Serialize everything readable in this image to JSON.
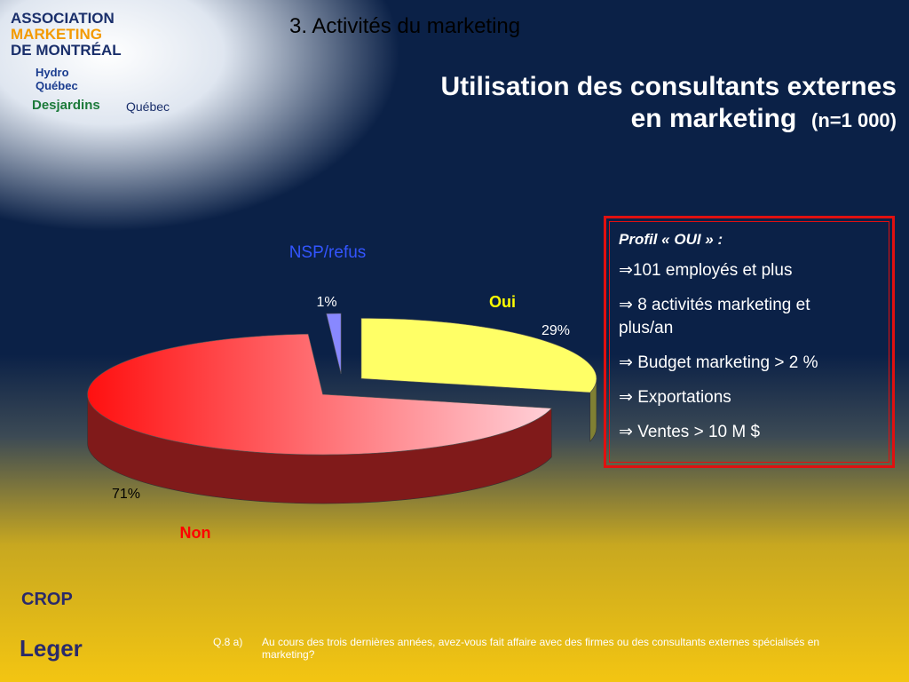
{
  "chart_data": {
    "type": "pie",
    "categories": [
      "Oui",
      "Non",
      "NSP/refus"
    ],
    "values": [
      29,
      71,
      1
    ],
    "value_labels": [
      "29%",
      "71%",
      "1%"
    ],
    "colors": [
      "#ffff66",
      "#ff3333",
      "#8888ff"
    ],
    "label_colors": [
      "#ffff00",
      "#ff0000",
      "#3355ff"
    ]
  },
  "slide": {
    "section": "3. Activités du marketing",
    "title_line1": "Utilisation des consultants externes",
    "title_line2": "en marketing",
    "sample": "(n=1 000)",
    "profile": {
      "heading": "Profil « OUI » :",
      "items": [
        "⇒101 employés et plus",
        "⇒ 8 activités marketing et plus/an",
        "⇒ Budget marketing > 2 %",
        "⇒ Exportations",
        "⇒ Ventes > 10 M $"
      ]
    },
    "question_id": "Q.8 a)",
    "question": "Au cours des trois dernières années, avez-vous fait affaire avec des firmes ou des consultants externes spécialisés en marketing?",
    "logos": [
      "ASSOCIATION",
      "MARKETING",
      "DE MONTRÉAL",
      "Hydro Québec",
      "Desjardins",
      "Québec",
      "CROP",
      "Leger"
    ]
  }
}
